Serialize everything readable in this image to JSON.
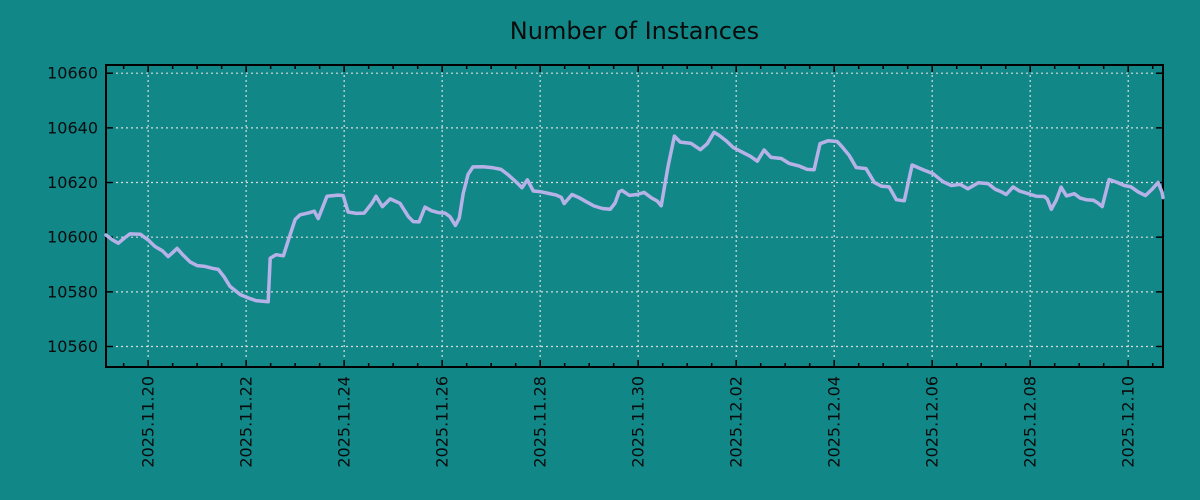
{
  "colors": {
    "background": "#118788",
    "line": "#b6b2e8",
    "grid": "#d9dcdc",
    "axis": "#000000",
    "text": "#0b0b0b"
  },
  "chart_data": {
    "type": "line",
    "title": "Number of Instances",
    "xlabel": "",
    "ylabel": "",
    "grid": true,
    "legend": "none",
    "x_axis": {
      "unit": "days, 1.0 = 2025.11.20",
      "xlim": [
        0.14,
        21.71
      ],
      "tick_positions": [
        1,
        3,
        5,
        7,
        9,
        11,
        13,
        15,
        17,
        19,
        21
      ],
      "tick_labels": [
        "2025.11.20",
        "2025.11.22",
        "2025.11.24",
        "2025.11.26",
        "2025.11.28",
        "2025.11.30",
        "2025.12.02",
        "2025.12.04",
        "2025.12.06",
        "2025.12.08",
        "2025.12.10"
      ],
      "minor_tick_interval": 0.5
    },
    "y_axis": {
      "ylim": [
        10552.5,
        10663.0
      ],
      "tick_values": [
        10560,
        10580,
        10600,
        10620,
        10640,
        10660
      ]
    },
    "series": [
      {
        "name": "instances",
        "color": "#b6b2e8",
        "points": [
          [
            0.14,
            10600.8
          ],
          [
            0.27,
            10599.0
          ],
          [
            0.39,
            10597.8
          ],
          [
            0.53,
            10599.9
          ],
          [
            0.63,
            10601.2
          ],
          [
            0.84,
            10601.1
          ],
          [
            1.0,
            10599.0
          ],
          [
            1.14,
            10596.6
          ],
          [
            1.29,
            10595.0
          ],
          [
            1.41,
            10592.9
          ],
          [
            1.51,
            10594.5
          ],
          [
            1.59,
            10595.9
          ],
          [
            1.71,
            10593.5
          ],
          [
            1.86,
            10590.9
          ],
          [
            2.0,
            10589.6
          ],
          [
            2.16,
            10589.3
          ],
          [
            2.31,
            10588.6
          ],
          [
            2.43,
            10588.2
          ],
          [
            2.55,
            10585.5
          ],
          [
            2.67,
            10582.0
          ],
          [
            2.88,
            10579.0
          ],
          [
            3.04,
            10577.8
          ],
          [
            3.2,
            10576.8
          ],
          [
            3.45,
            10576.4
          ],
          [
            3.49,
            10592.3
          ],
          [
            3.61,
            10593.6
          ],
          [
            3.76,
            10593.2
          ],
          [
            3.88,
            10600.0
          ],
          [
            4.0,
            10606.5
          ],
          [
            4.1,
            10608.2
          ],
          [
            4.27,
            10608.9
          ],
          [
            4.39,
            10609.5
          ],
          [
            4.47,
            10606.8
          ],
          [
            4.65,
            10615.0
          ],
          [
            4.88,
            10615.4
          ],
          [
            4.98,
            10615.2
          ],
          [
            5.08,
            10609.2
          ],
          [
            5.25,
            10608.7
          ],
          [
            5.41,
            10608.8
          ],
          [
            5.57,
            10612.5
          ],
          [
            5.65,
            10615.0
          ],
          [
            5.78,
            10611.2
          ],
          [
            5.94,
            10614.0
          ],
          [
            6.14,
            10612.4
          ],
          [
            6.31,
            10607.5
          ],
          [
            6.41,
            10605.7
          ],
          [
            6.53,
            10605.6
          ],
          [
            6.65,
            10611.0
          ],
          [
            6.78,
            10609.7
          ],
          [
            6.92,
            10609.0
          ],
          [
            7.06,
            10608.8
          ],
          [
            7.16,
            10607.5
          ],
          [
            7.27,
            10604.3
          ],
          [
            7.35,
            10607.0
          ],
          [
            7.43,
            10616.0
          ],
          [
            7.53,
            10623.0
          ],
          [
            7.63,
            10625.7
          ],
          [
            7.84,
            10625.8
          ],
          [
            8.04,
            10625.4
          ],
          [
            8.2,
            10624.8
          ],
          [
            8.35,
            10622.8
          ],
          [
            8.51,
            10620.2
          ],
          [
            8.63,
            10618.1
          ],
          [
            8.74,
            10621.0
          ],
          [
            8.86,
            10616.9
          ],
          [
            9.02,
            10616.6
          ],
          [
            9.18,
            10616.0
          ],
          [
            9.33,
            10615.4
          ],
          [
            9.43,
            10614.6
          ],
          [
            9.49,
            10612.3
          ],
          [
            9.65,
            10615.6
          ],
          [
            9.8,
            10614.4
          ],
          [
            9.94,
            10613.0
          ],
          [
            10.1,
            10611.4
          ],
          [
            10.27,
            10610.5
          ],
          [
            10.43,
            10610.2
          ],
          [
            10.53,
            10612.5
          ],
          [
            10.61,
            10616.6
          ],
          [
            10.67,
            10617.1
          ],
          [
            10.82,
            10615.3
          ],
          [
            10.98,
            10615.6
          ],
          [
            11.12,
            10616.4
          ],
          [
            11.27,
            10614.4
          ],
          [
            11.39,
            10613.2
          ],
          [
            11.47,
            10611.5
          ],
          [
            11.61,
            10626.0
          ],
          [
            11.74,
            10637.0
          ],
          [
            11.86,
            10634.8
          ],
          [
            12.08,
            10634.3
          ],
          [
            12.27,
            10632.0
          ],
          [
            12.41,
            10634.2
          ],
          [
            12.55,
            10638.4
          ],
          [
            12.65,
            10637.3
          ],
          [
            12.8,
            10635.2
          ],
          [
            12.94,
            10632.8
          ],
          [
            13.1,
            10631.3
          ],
          [
            13.29,
            10629.6
          ],
          [
            13.43,
            10627.8
          ],
          [
            13.57,
            10631.9
          ],
          [
            13.71,
            10629.2
          ],
          [
            13.92,
            10628.8
          ],
          [
            14.08,
            10627.0
          ],
          [
            14.29,
            10626.0
          ],
          [
            14.45,
            10624.8
          ],
          [
            14.59,
            10624.7
          ],
          [
            14.71,
            10634.2
          ],
          [
            14.88,
            10635.3
          ],
          [
            15.06,
            10635.0
          ],
          [
            15.16,
            10633.1
          ],
          [
            15.31,
            10629.8
          ],
          [
            15.45,
            10625.5
          ],
          [
            15.65,
            10625.1
          ],
          [
            15.82,
            10620.0
          ],
          [
            15.96,
            10618.7
          ],
          [
            16.12,
            10618.4
          ],
          [
            16.27,
            10613.7
          ],
          [
            16.43,
            10613.3
          ],
          [
            16.59,
            10626.4
          ],
          [
            16.82,
            10624.6
          ],
          [
            17.02,
            10623.2
          ],
          [
            17.22,
            10620.3
          ],
          [
            17.39,
            10618.9
          ],
          [
            17.57,
            10619.3
          ],
          [
            17.73,
            10617.7
          ],
          [
            17.94,
            10619.9
          ],
          [
            18.14,
            10619.6
          ],
          [
            18.29,
            10617.5
          ],
          [
            18.41,
            10616.6
          ],
          [
            18.51,
            10615.6
          ],
          [
            18.65,
            10618.4
          ],
          [
            18.78,
            10616.9
          ],
          [
            18.96,
            10615.9
          ],
          [
            19.12,
            10615.0
          ],
          [
            19.29,
            10614.9
          ],
          [
            19.35,
            10613.9
          ],
          [
            19.43,
            10610.2
          ],
          [
            19.53,
            10613.5
          ],
          [
            19.63,
            10618.3
          ],
          [
            19.74,
            10615.1
          ],
          [
            19.9,
            10615.9
          ],
          [
            20.02,
            10614.3
          ],
          [
            20.14,
            10613.7
          ],
          [
            20.29,
            10613.5
          ],
          [
            20.39,
            10612.4
          ],
          [
            20.47,
            10611.2
          ],
          [
            20.61,
            10621.1
          ],
          [
            20.78,
            10620.0
          ],
          [
            20.92,
            10618.9
          ],
          [
            21.06,
            10618.4
          ],
          [
            21.2,
            10616.6
          ],
          [
            21.35,
            10615.2
          ],
          [
            21.49,
            10617.6
          ],
          [
            21.61,
            10620.0
          ],
          [
            21.69,
            10616.5
          ],
          [
            21.71,
            10614.5
          ]
        ]
      }
    ]
  }
}
